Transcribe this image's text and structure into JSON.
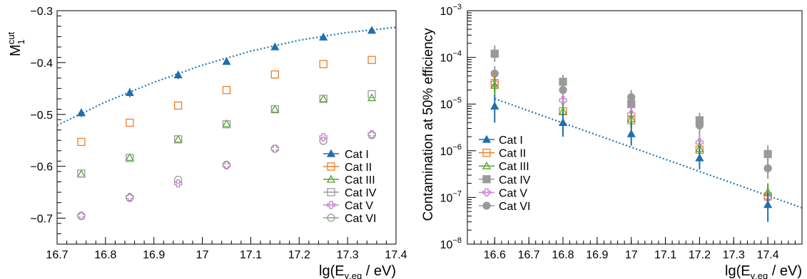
{
  "colors": {
    "cat1": "#1f6fb0",
    "cat2": "#f07d2a",
    "cat3": "#4ca62a",
    "cat4": "#9a9a9a",
    "cat5": "#c77fd1",
    "cat6": "#999999",
    "fit": "#1f78b4"
  },
  "chart_data": [
    {
      "type": "scatter",
      "xlabel_main": "lg(E",
      "xlabel_sub": "γ,eq",
      "xlabel_tail": " / eV)",
      "ylabel_main": "M",
      "ylabel_sub": "1",
      "ylabel_sup": "cut",
      "xlim": [
        16.7,
        17.4
      ],
      "ylim": [
        -0.75,
        -0.3
      ],
      "xticks": [
        "16.7",
        "16.8",
        "16.9",
        "17",
        "17.1",
        "17.2",
        "17.3",
        "17.4"
      ],
      "yticks": [
        "−0.7",
        "−0.6",
        "−0.5",
        "−0.4",
        "−0.3"
      ],
      "x": [
        16.75,
        16.85,
        16.95,
        17.05,
        17.15,
        17.25,
        17.35
      ],
      "series": [
        {
          "name": "Cat I",
          "marker": "triangle-filled",
          "values": [
            -0.497,
            -0.458,
            -0.424,
            -0.398,
            -0.37,
            -0.351,
            -0.338
          ],
          "err": [
            0.008,
            0.009,
            0.008,
            0.005,
            0.004,
            0.004,
            0.004
          ]
        },
        {
          "name": "Cat II",
          "marker": "square-open",
          "values": [
            -0.553,
            -0.516,
            -0.483,
            -0.453,
            -0.423,
            -0.403,
            -0.395
          ],
          "err": [
            0,
            0,
            0,
            0,
            0,
            0,
            0
          ]
        },
        {
          "name": "Cat III",
          "marker": "triangle-open",
          "values": [
            -0.615,
            -0.583,
            -0.548,
            -0.518,
            -0.49,
            -0.47,
            -0.468
          ],
          "err": [
            0,
            0,
            0,
            0,
            0,
            0,
            0
          ]
        },
        {
          "name": "Cat IV",
          "marker": "square-open",
          "values": [
            -0.614,
            -0.584,
            -0.548,
            -0.519,
            -0.49,
            -0.47,
            -0.461
          ],
          "err": [
            0,
            0,
            0,
            0,
            0,
            0,
            0
          ]
        },
        {
          "name": "Cat V",
          "marker": "cross-open",
          "values": [
            -0.695,
            -0.659,
            -0.633,
            -0.598,
            -0.566,
            -0.544,
            -0.538
          ],
          "err": [
            0,
            0,
            0,
            0,
            0,
            0,
            0
          ]
        },
        {
          "name": "Cat VI",
          "marker": "circle-open",
          "values": [
            -0.696,
            -0.661,
            -0.626,
            -0.597,
            -0.566,
            -0.551,
            -0.54
          ],
          "err": [
            0,
            0,
            0,
            0,
            0,
            0,
            0
          ]
        }
      ],
      "fit": {
        "x": [
          16.7,
          16.8,
          16.9,
          17.0,
          17.1,
          17.2,
          17.3,
          17.4
        ],
        "y": [
          -0.521,
          -0.476,
          -0.438,
          -0.405,
          -0.378,
          -0.357,
          -0.342,
          -0.332
        ]
      }
    },
    {
      "type": "scatter",
      "log_y": true,
      "xlabel_main": "lg(E",
      "xlabel_sub": "γ,eq",
      "xlabel_tail": " / eV)",
      "ylabel": "Contamination at 50% efficiency",
      "xlim": [
        16.52,
        17.5
      ],
      "ylim_exp": [
        -8,
        -3
      ],
      "xticks": [
        "16.6",
        "16.7",
        "16.8",
        "16.9",
        "17",
        "17.1",
        "17.2",
        "17.3",
        "17.4"
      ],
      "yticks": [
        "10",
        "10",
        "10",
        "10",
        "10",
        "10"
      ],
      "ytick_exp": [
        "−8",
        "−7",
        "−6",
        "−5",
        "−4",
        "−3"
      ],
      "x": [
        16.6,
        16.8,
        17.0,
        17.2,
        17.4
      ],
      "series": [
        {
          "name": "Cat I",
          "marker": "triangle-filled",
          "values": [
            9e-06,
            4e-06,
            2.3e-06,
            7e-07,
            7e-08
          ],
          "lo": [
            4e-06,
            2e-06,
            1.3e-06,
            4e-07,
            3e-08
          ],
          "hi": [
            1.6e-05,
            7e-06,
            4e-06,
            1.2e-06,
            1.3e-07
          ]
        },
        {
          "name": "Cat II",
          "marker": "square-open",
          "values": [
            2.8e-05,
            7e-06,
            4.5e-06,
            1.05e-06,
            1.05e-07
          ],
          "lo": [
            1.8e-05,
            5e-06,
            3e-06,
            7e-07,
            6e-08
          ],
          "hi": [
            4.5e-05,
            1e-05,
            6.5e-06,
            1.5e-06,
            1.7e-07
          ]
        },
        {
          "name": "Cat III",
          "marker": "triangle-open",
          "values": [
            2.5e-05,
            7e-06,
            4.8e-06,
            1.1e-06,
            1.3e-07
          ],
          "lo": [
            1.6e-05,
            5e-06,
            3.2e-06,
            7e-07,
            8e-08
          ],
          "hi": [
            3.8e-05,
            1e-05,
            7e-06,
            1.6e-06,
            2e-07
          ]
        },
        {
          "name": "Cat IV",
          "marker": "square-filled",
          "values": [
            0.00012,
            3e-05,
            1e-05,
            4.5e-06,
            8.5e-07
          ],
          "lo": [
            8e-05,
            2e-05,
            7e-06,
            3e-06,
            5e-07
          ],
          "hi": [
            0.00018,
            4.2e-05,
            1.5e-05,
            6.5e-06,
            1.3e-06
          ]
        },
        {
          "name": "Cat V",
          "marker": "cross-open",
          "values": [
            2.8e-05,
            1.2e-05,
            6e-06,
            1.5e-06,
            1e-07
          ],
          "lo": [
            1.9e-05,
            8e-06,
            4e-06,
            1e-06,
            6e-08
          ],
          "hi": [
            4e-05,
            1.8e-05,
            9e-06,
            2.2e-06,
            1.6e-07
          ]
        },
        {
          "name": "Cat VI",
          "marker": "circle-filled",
          "values": [
            4.5e-05,
            2e-05,
            1.4e-05,
            3.5e-06,
            4.2e-07
          ],
          "lo": [
            3e-05,
            1.3e-05,
            9e-06,
            2.2e-06,
            2.5e-07
          ],
          "hi": [
            6.5e-05,
            3e-05,
            2e-05,
            5e-06,
            7e-07
          ]
        }
      ],
      "fit": {
        "x": [
          16.6,
          17.5
        ],
        "y": [
          1.3e-05,
          6e-08
        ]
      }
    }
  ]
}
